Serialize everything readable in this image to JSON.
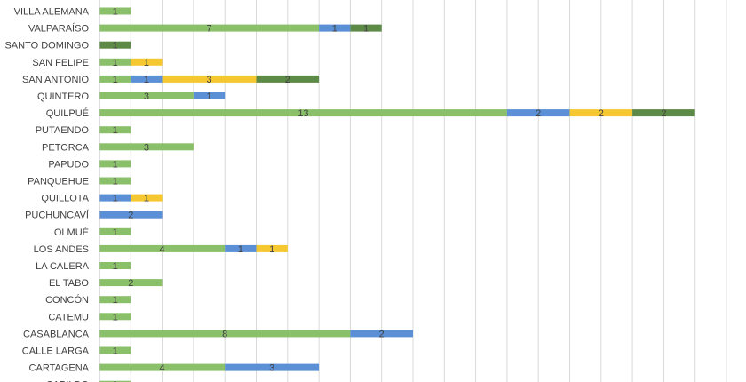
{
  "chart_data": {
    "type": "bar",
    "orientation": "horizontal",
    "stacked": true,
    "grid": true,
    "legend": "none",
    "xlim": [
      0,
      20
    ],
    "categories": [
      "VILLA ALEMANA",
      "VALPARAÍSO",
      "SANTO DOMINGO",
      "SAN FELIPE",
      "SAN ANTONIO",
      "QUINTERO",
      "QUILPUÉ",
      "PUTAENDO",
      "PETORCA",
      "PAPUDO",
      "PANQUEHUE",
      "QUILLOTA",
      "PUCHUNCAVÍ",
      "OLMUÉ",
      "LOS ANDES",
      "LA CALERA",
      "EL TABO",
      "CONCÓN",
      "CATEMU",
      "CASABLANCA",
      "CALLE LARGA",
      "CARTAGENA",
      "CABILDO"
    ],
    "series": [
      {
        "color": "#8BC06A",
        "values": [
          1,
          7,
          0,
          1,
          1,
          3,
          13,
          1,
          3,
          1,
          1,
          0,
          0,
          1,
          4,
          1,
          2,
          1,
          1,
          8,
          1,
          4,
          1
        ]
      },
      {
        "color": "#5B8FD6",
        "values": [
          0,
          1,
          0,
          0,
          1,
          1,
          2,
          0,
          0,
          0,
          0,
          1,
          2,
          0,
          1,
          0,
          0,
          0,
          0,
          2,
          0,
          3,
          0
        ]
      },
      {
        "color": "#F5C832",
        "values": [
          0,
          0,
          0,
          1,
          3,
          0,
          2,
          0,
          0,
          0,
          0,
          1,
          0,
          0,
          1,
          0,
          0,
          0,
          0,
          0,
          0,
          0,
          0
        ]
      },
      {
        "color": "#5E8A47",
        "values": [
          0,
          1,
          1,
          0,
          2,
          0,
          2,
          0,
          0,
          0,
          0,
          0,
          0,
          0,
          0,
          0,
          0,
          0,
          0,
          0,
          0,
          0,
          0
        ]
      }
    ]
  }
}
